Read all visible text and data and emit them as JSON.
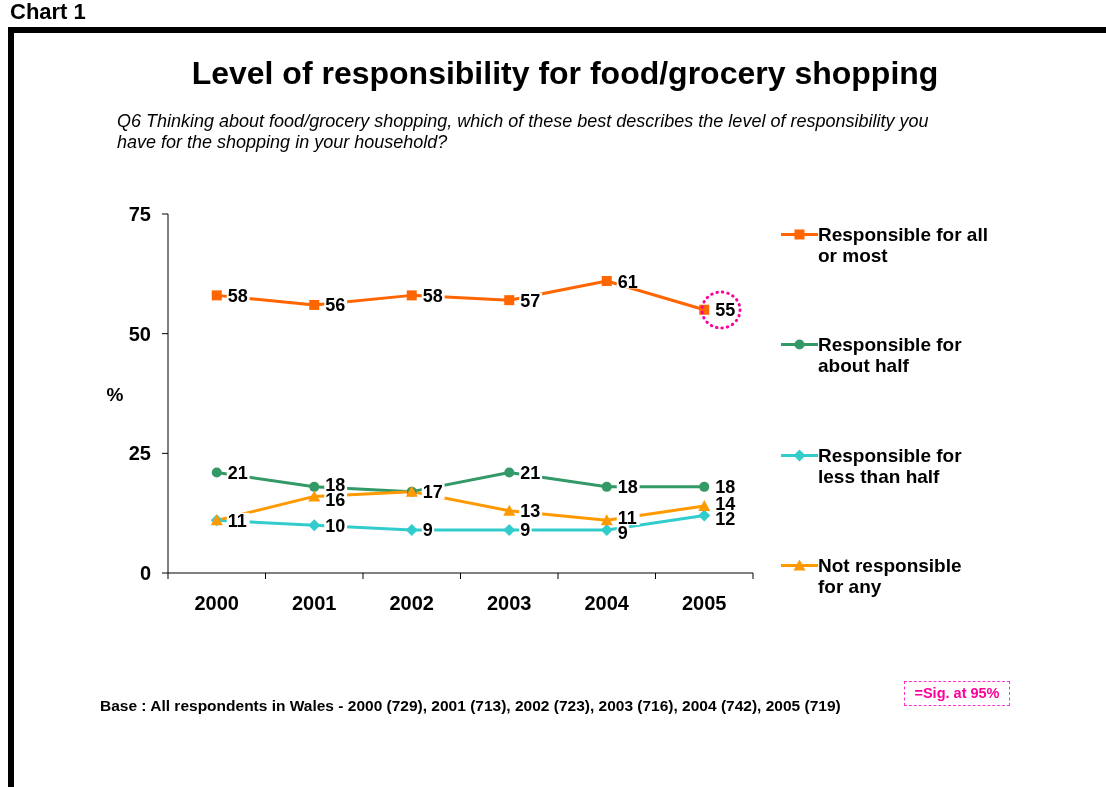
{
  "chart_data": {
    "type": "line",
    "title": "Level of responsibility for food/grocery shopping",
    "subtitle": "Q6 Thinking about food/grocery shopping, which of these best describes the level of responsibility you have for the shopping in your household?",
    "ylabel": "%",
    "categories": [
      "2000",
      "2001",
      "2002",
      "2003",
      "2004",
      "2005"
    ],
    "series": [
      {
        "name": "Responsible for all or most",
        "color": "#ff6600",
        "marker": "square",
        "values": [
          58,
          56,
          58,
          57,
          61,
          55
        ],
        "value_labels": [
          "58",
          "56",
          "58",
          "57",
          "61",
          "55"
        ]
      },
      {
        "name": "Responsible for about half",
        "color": "#339966",
        "marker": "circle",
        "values": [
          21,
          18,
          17,
          21,
          18,
          18
        ],
        "value_labels": [
          "21",
          "18",
          null,
          "21",
          "18",
          "18"
        ]
      },
      {
        "name": "Responsible for less than half",
        "color": "#33cccc",
        "marker": "diamond",
        "values": [
          11,
          10,
          9,
          9,
          9,
          12
        ],
        "value_labels": [
          null,
          "10",
          "9",
          "9",
          "9",
          "12"
        ]
      },
      {
        "name": "Not responsible for any",
        "color": "#ff9900",
        "marker": "triangle",
        "values": [
          11,
          16,
          17,
          13,
          11,
          14
        ],
        "value_labels": [
          "11",
          "16",
          "17",
          "13",
          "11",
          "14"
        ]
      }
    ],
    "ylim": [
      0,
      75
    ],
    "yticks": [
      0,
      25,
      50,
      75
    ],
    "legend": "right",
    "annotations": [
      "Chart 1",
      "=Sig. at 95%",
      "Base : All respondents in Wales - 2000 (729), 2001 (713), 2002 (723), 2003 (716), 2004 (742), 2005 (719)"
    ]
  }
}
